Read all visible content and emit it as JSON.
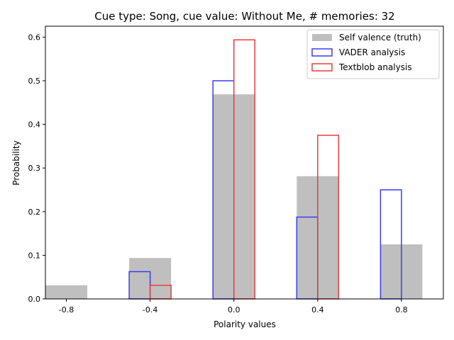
{
  "chart_data": {
    "type": "bar",
    "title": "Cue type: Song, cue value: Without Me, # memories: 32",
    "xlabel": "Polarity values",
    "ylabel": "Probability",
    "categories": [
      "-0.8",
      "-0.4",
      "0.0",
      "0.4",
      "0.8"
    ],
    "x": [
      -0.8,
      -0.4,
      0.0,
      0.4,
      0.8
    ],
    "xlim": [
      -0.9,
      1.0
    ],
    "ylim": [
      0,
      0.625
    ],
    "yticks": [
      "0.0",
      "0.1",
      "0.2",
      "0.3",
      "0.4",
      "0.5",
      "0.6"
    ],
    "ytick_values": [
      0,
      0.1,
      0.2,
      0.3,
      0.4,
      0.5,
      0.6
    ],
    "grid": false,
    "legend_position": "top-right",
    "series": [
      {
        "name": "Self valence (truth)",
        "style": "filled",
        "color": "#bfbfbf",
        "values": [
          0.03125,
          0.09375,
          0.46875,
          0.28125,
          0.125
        ]
      },
      {
        "name": "VADER analysis",
        "style": "outline",
        "color": "#3b3bf0",
        "values": [
          0,
          0.0625,
          0.5,
          0.1875,
          0.25
        ]
      },
      {
        "name": "Textblob analysis",
        "style": "outline",
        "color": "#ef3b3b",
        "values": [
          0,
          0.03125,
          0.59375,
          0.375,
          0
        ]
      }
    ]
  }
}
